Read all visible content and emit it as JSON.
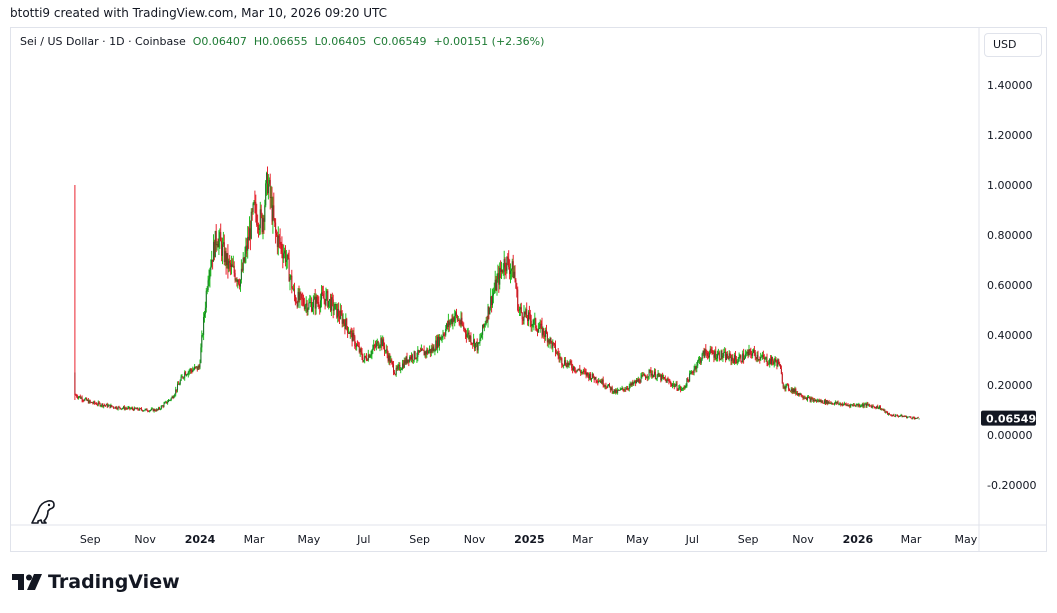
{
  "header": {
    "credit": "btotti9 created with TradingView.com, Mar 10, 2026 09:20 UTC"
  },
  "legend": {
    "symbol": "Sei / US Dollar · 1D · Coinbase",
    "open": "O0.06407",
    "high": "H0.06655",
    "low": "L0.06405",
    "close": "C0.06549",
    "change": "+0.00151 (+2.36%)"
  },
  "price_axis": {
    "currency_button": "USD",
    "last_price": "0.06549"
  },
  "footer": {
    "brand": "TradingView"
  },
  "colors": {
    "up": "#22c022",
    "down": "#e8232e",
    "up_body": "#1d6b2a",
    "down_body": "#b81b22",
    "last_price_bg": "#131722"
  },
  "chart_data": {
    "type": "candlestick",
    "title": "Sei / US Dollar · 1D · Coinbase",
    "ylim": [
      -0.3,
      1.5
    ],
    "yticks": [
      "1.40000",
      "1.20000",
      "1.00000",
      "0.80000",
      "0.60000",
      "0.40000",
      "0.20000",
      "0.00000",
      "-0.20000"
    ],
    "ytick_values": [
      1.4,
      1.2,
      1.0,
      0.8,
      0.6,
      0.4,
      0.2,
      0.0,
      -0.2
    ],
    "xticks": [
      {
        "label": "Sep",
        "date": "2023-09-01"
      },
      {
        "label": "Nov",
        "date": "2023-11-01"
      },
      {
        "label": "2024",
        "date": "2024-01-01",
        "bold": true
      },
      {
        "label": "Mar",
        "date": "2024-03-01"
      },
      {
        "label": "May",
        "date": "2024-05-01"
      },
      {
        "label": "Jul",
        "date": "2024-07-01"
      },
      {
        "label": "Sep",
        "date": "2024-09-01"
      },
      {
        "label": "Nov",
        "date": "2024-11-01"
      },
      {
        "label": "2025",
        "date": "2025-01-01",
        "bold": true
      },
      {
        "label": "Mar",
        "date": "2025-03-01"
      },
      {
        "label": "May",
        "date": "2025-05-01"
      },
      {
        "label": "Jul",
        "date": "2025-07-01"
      },
      {
        "label": "Sep",
        "date": "2025-09-01"
      },
      {
        "label": "Nov",
        "date": "2025-11-01"
      },
      {
        "label": "2026",
        "date": "2026-01-01",
        "bold": true
      },
      {
        "label": "Mar",
        "date": "2026-03-01"
      },
      {
        "label": "May",
        "date": "2026-05-01"
      }
    ],
    "first_candle": {
      "date": "2023-08-15",
      "open": 0.25,
      "high": 1.0,
      "low": 0.14,
      "close": 0.16
    },
    "approx_closes": [
      [
        "2023-08-16",
        0.16
      ],
      [
        "2023-09-01",
        0.13
      ],
      [
        "2023-10-01",
        0.11
      ],
      [
        "2023-11-01",
        0.1
      ],
      [
        "2023-11-15",
        0.1
      ],
      [
        "2023-12-01",
        0.15
      ],
      [
        "2023-12-15",
        0.25
      ],
      [
        "2023-12-31",
        0.27
      ],
      [
        "2024-01-05",
        0.45
      ],
      [
        "2024-01-10",
        0.65
      ],
      [
        "2024-01-20",
        0.8
      ],
      [
        "2024-02-01",
        0.68
      ],
      [
        "2024-02-15",
        0.62
      ],
      [
        "2024-03-01",
        0.9
      ],
      [
        "2024-03-10",
        0.85
      ],
      [
        "2024-03-16",
        1.02
      ],
      [
        "2024-03-25",
        0.8
      ],
      [
        "2024-04-05",
        0.72
      ],
      [
        "2024-04-15",
        0.55
      ],
      [
        "2024-05-01",
        0.52
      ],
      [
        "2024-05-20",
        0.55
      ],
      [
        "2024-06-10",
        0.45
      ],
      [
        "2024-07-01",
        0.3
      ],
      [
        "2024-07-20",
        0.38
      ],
      [
        "2024-08-05",
        0.25
      ],
      [
        "2024-08-20",
        0.31
      ],
      [
        "2024-09-15",
        0.34
      ],
      [
        "2024-10-10",
        0.48
      ],
      [
        "2024-10-25",
        0.4
      ],
      [
        "2024-11-05",
        0.35
      ],
      [
        "2024-11-20",
        0.55
      ],
      [
        "2024-12-05",
        0.7
      ],
      [
        "2024-12-15",
        0.65
      ],
      [
        "2024-12-20",
        0.5
      ],
      [
        "2025-01-05",
        0.45
      ],
      [
        "2025-01-20",
        0.4
      ],
      [
        "2025-02-05",
        0.3
      ],
      [
        "2025-02-15",
        0.28
      ],
      [
        "2025-03-01",
        0.25
      ],
      [
        "2025-03-20",
        0.22
      ],
      [
        "2025-04-07",
        0.17
      ],
      [
        "2025-04-25",
        0.2
      ],
      [
        "2025-05-15",
        0.25
      ],
      [
        "2025-06-01",
        0.22
      ],
      [
        "2025-06-20",
        0.18
      ],
      [
        "2025-07-05",
        0.28
      ],
      [
        "2025-07-15",
        0.33
      ],
      [
        "2025-08-01",
        0.32
      ],
      [
        "2025-08-20",
        0.3
      ],
      [
        "2025-09-05",
        0.33
      ],
      [
        "2025-09-20",
        0.3
      ],
      [
        "2025-10-05",
        0.29
      ],
      [
        "2025-10-10",
        0.2
      ],
      [
        "2025-10-25",
        0.17
      ],
      [
        "2025-11-10",
        0.14
      ],
      [
        "2025-12-01",
        0.13
      ],
      [
        "2025-12-20",
        0.12
      ],
      [
        "2026-01-10",
        0.12
      ],
      [
        "2026-01-25",
        0.11
      ],
      [
        "2026-02-05",
        0.08
      ],
      [
        "2026-02-20",
        0.075
      ],
      [
        "2026-03-10",
        0.0655
      ]
    ],
    "last": {
      "date": "2026-03-10",
      "open": 0.06407,
      "high": 0.06655,
      "low": 0.06405,
      "close": 0.06549
    }
  }
}
